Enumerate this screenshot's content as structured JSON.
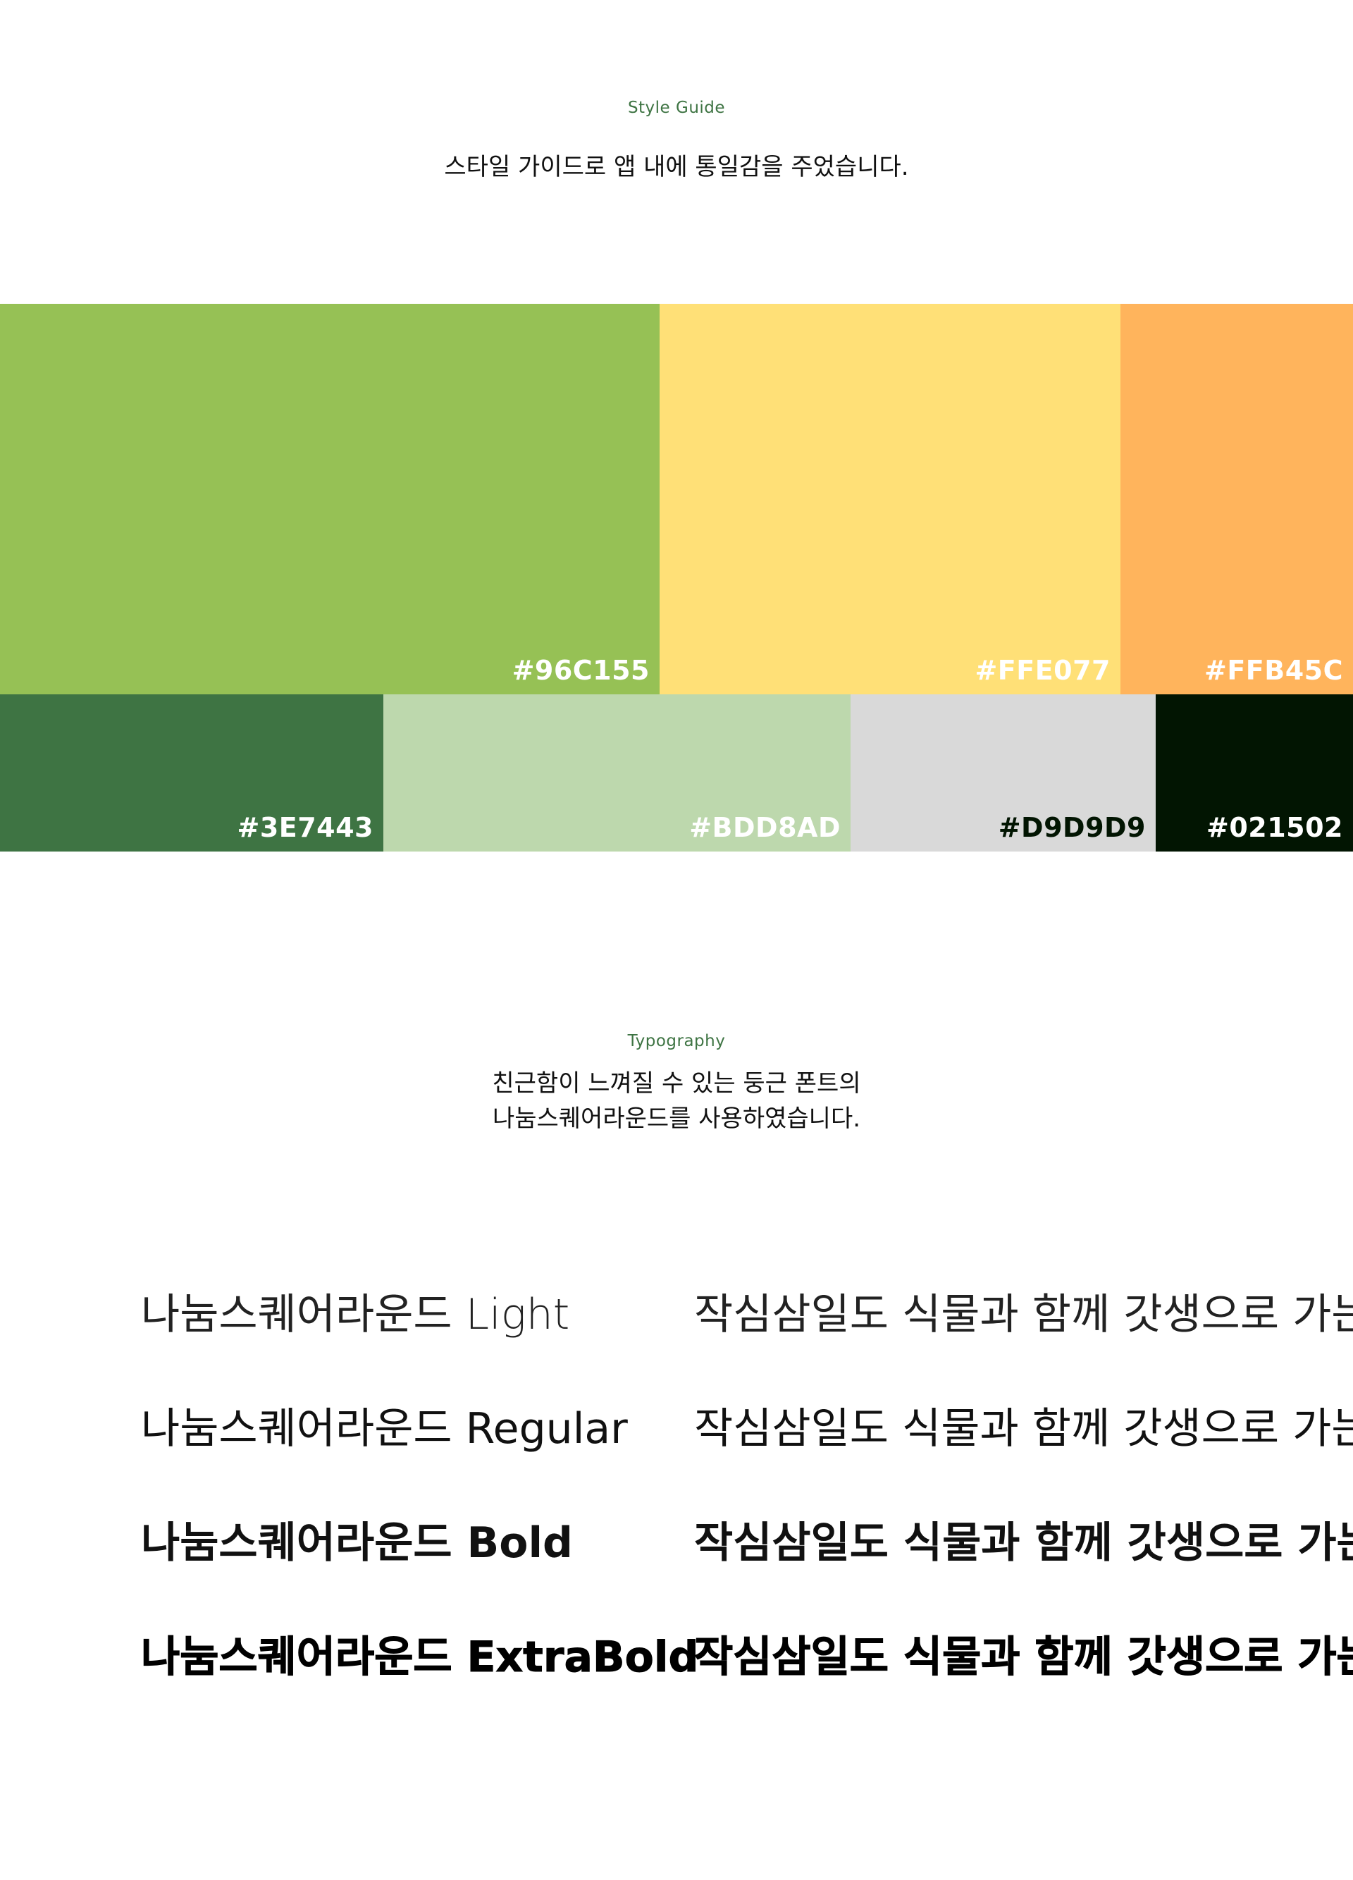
{
  "style_guide": {
    "label": "Style Guide",
    "description": "스타일 가이드로 앱 내에 통일감을 주었습니다."
  },
  "palette": {
    "row1": [
      {
        "hex": "#96C155",
        "color": "#96C155",
        "text_color": "#FFFFFF"
      },
      {
        "hex": "#FFE077",
        "color": "#FFE077",
        "text_color": "#FFFFFF"
      },
      {
        "hex": "#FFB45C",
        "color": "#FFB45C",
        "text_color": "#FFFFFF"
      }
    ],
    "row2": [
      {
        "hex": "#3E7443",
        "color": "#3E7443",
        "text_color": "#FFFFFF"
      },
      {
        "hex": "#BDD8AD",
        "color": "#BDD8AD",
        "text_color": "#FFFFFF"
      },
      {
        "hex": "#D9D9D9",
        "color": "#D9D9D9",
        "text_color": "#021502"
      },
      {
        "hex": "#021502",
        "color": "#021502",
        "text_color": "#FFFFFF"
      }
    ]
  },
  "typography": {
    "label": "Typography",
    "description_line1": "친근함이 느껴질 수 있는 둥근 폰트의",
    "description_line2": "나눔스퀘어라운드를 사용하였습니다.",
    "rows": [
      {
        "name": "나눔스퀘어라운드 Light",
        "sample": "작심삼일도 식물과 함께 갓생으로 가는"
      },
      {
        "name": "나눔스퀘어라운드 Regular",
        "sample": "작심삼일도 식물과 함께 갓생으로 가는"
      },
      {
        "name": "나눔스퀘어라운드 Bold",
        "sample": "작심삼일도 식물과 함께 갓생으로 가는"
      },
      {
        "name": "나눔스퀘어라운드 ExtraBold",
        "sample": "작심삼일도 식물과 함께 갓생으로 가는"
      }
    ]
  }
}
